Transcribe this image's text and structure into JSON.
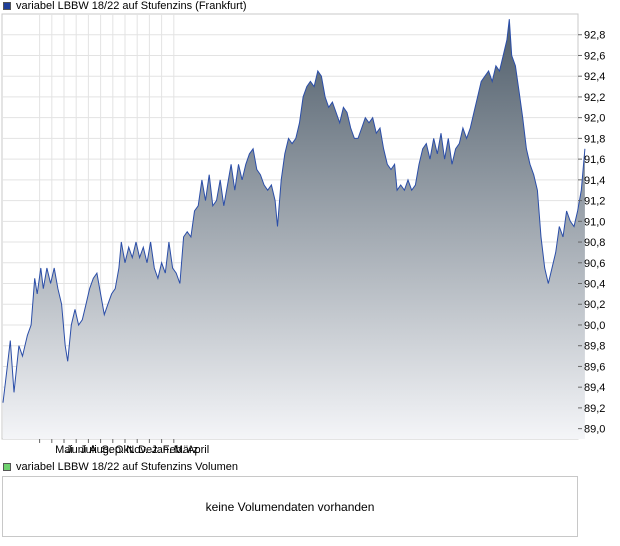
{
  "price_legend": {
    "label": "variabel LBBW 18/22 auf Stufenzins (Frankfurt)",
    "color": "#1f3f99"
  },
  "volume_legend": {
    "label": "variabel LBBW 18/22 auf Stufenzins Volumen",
    "color": "#6fd26f"
  },
  "volume_panel": {
    "message": "keine Volumendaten vorhanden"
  },
  "chart_data": {
    "type": "area",
    "series": [
      {
        "name": "variabel LBBW 18/22 auf Stufenzins (Frankfurt)"
      }
    ],
    "x_tick_labels": [
      "Mai",
      "Juni",
      "Juli",
      "Aug.",
      "Sep.",
      "Okt.",
      "Nov.",
      "Dez.",
      "Jan.",
      "Feb.",
      "März",
      "April"
    ],
    "y_tick_labels": [
      "89,0",
      "89,2",
      "89,4",
      "89,6",
      "89,8",
      "90,0",
      "90,2",
      "90,4",
      "90,6",
      "90,8",
      "91,0",
      "91,2",
      "91,4",
      "91,6",
      "91,8",
      "92,0",
      "92,2",
      "92,4",
      "92,6",
      "92,8"
    ],
    "ylim": [
      88.9,
      93.0
    ],
    "y_axis_position": "right",
    "grid": true,
    "line_color": "#2b4ea8",
    "fill_top_color": "#4f5d6a",
    "fill_bottom_color": "#f4f5f8",
    "points": [
      [
        0,
        89.25
      ],
      [
        0.3,
        89.55
      ],
      [
        0.6,
        89.85
      ],
      [
        0.9,
        89.35
      ],
      [
        1.3,
        89.8
      ],
      [
        1.6,
        89.7
      ],
      [
        2.0,
        89.9
      ],
      [
        2.3,
        90.0
      ],
      [
        2.6,
        90.45
      ],
      [
        2.8,
        90.3
      ],
      [
        3.1,
        90.55
      ],
      [
        3.3,
        90.35
      ],
      [
        3.6,
        90.55
      ],
      [
        3.9,
        90.4
      ],
      [
        4.2,
        90.55
      ],
      [
        4.5,
        90.35
      ],
      [
        4.8,
        90.2
      ],
      [
        5.1,
        89.8
      ],
      [
        5.3,
        89.65
      ],
      [
        5.6,
        90.0
      ],
      [
        5.9,
        90.15
      ],
      [
        6.2,
        90.0
      ],
      [
        6.5,
        90.05
      ],
      [
        6.8,
        90.2
      ],
      [
        7.1,
        90.35
      ],
      [
        7.4,
        90.45
      ],
      [
        7.7,
        90.5
      ],
      [
        8.0,
        90.3
      ],
      [
        8.3,
        90.1
      ],
      [
        8.6,
        90.2
      ],
      [
        8.9,
        90.3
      ],
      [
        9.2,
        90.35
      ],
      [
        9.5,
        90.55
      ],
      [
        9.7,
        90.8
      ],
      [
        10.0,
        90.6
      ],
      [
        10.3,
        90.75
      ],
      [
        10.6,
        90.65
      ],
      [
        10.9,
        90.8
      ],
      [
        11.2,
        90.65
      ],
      [
        11.5,
        90.75
      ],
      [
        11.8,
        90.6
      ],
      [
        12.1,
        90.8
      ],
      [
        12.4,
        90.55
      ],
      [
        12.7,
        90.45
      ],
      [
        13.0,
        90.6
      ],
      [
        13.3,
        90.5
      ],
      [
        13.6,
        90.8
      ],
      [
        13.9,
        90.55
      ],
      [
        14.2,
        90.5
      ],
      [
        14.5,
        90.4
      ],
      [
        14.8,
        90.85
      ],
      [
        15.1,
        90.9
      ],
      [
        15.4,
        90.85
      ],
      [
        15.7,
        91.1
      ],
      [
        16.0,
        91.15
      ],
      [
        16.3,
        91.4
      ],
      [
        16.6,
        91.2
      ],
      [
        16.9,
        91.45
      ],
      [
        17.2,
        91.15
      ],
      [
        17.5,
        91.2
      ],
      [
        17.8,
        91.4
      ],
      [
        18.1,
        91.15
      ],
      [
        18.4,
        91.35
      ],
      [
        18.7,
        91.55
      ],
      [
        19.0,
        91.3
      ],
      [
        19.3,
        91.55
      ],
      [
        19.6,
        91.4
      ],
      [
        19.9,
        91.55
      ],
      [
        20.2,
        91.65
      ],
      [
        20.5,
        91.7
      ],
      [
        20.8,
        91.5
      ],
      [
        21.1,
        91.45
      ],
      [
        21.4,
        91.35
      ],
      [
        21.7,
        91.3
      ],
      [
        22.0,
        91.35
      ],
      [
        22.3,
        91.2
      ],
      [
        22.5,
        90.95
      ],
      [
        22.8,
        91.4
      ],
      [
        23.1,
        91.65
      ],
      [
        23.4,
        91.8
      ],
      [
        23.7,
        91.75
      ],
      [
        24.0,
        91.8
      ],
      [
        24.3,
        91.95
      ],
      [
        24.6,
        92.2
      ],
      [
        24.9,
        92.3
      ],
      [
        25.2,
        92.35
      ],
      [
        25.5,
        92.3
      ],
      [
        25.8,
        92.45
      ],
      [
        26.1,
        92.4
      ],
      [
        26.4,
        92.2
      ],
      [
        26.7,
        92.1
      ],
      [
        27.0,
        92.15
      ],
      [
        27.3,
        92.05
      ],
      [
        27.6,
        91.95
      ],
      [
        27.9,
        92.1
      ],
      [
        28.2,
        92.05
      ],
      [
        28.5,
        91.9
      ],
      [
        28.8,
        91.8
      ],
      [
        29.1,
        91.8
      ],
      [
        29.4,
        91.9
      ],
      [
        29.7,
        92.0
      ],
      [
        30.0,
        91.95
      ],
      [
        30.3,
        92.0
      ],
      [
        30.6,
        91.85
      ],
      [
        30.9,
        91.9
      ],
      [
        31.2,
        91.7
      ],
      [
        31.5,
        91.55
      ],
      [
        31.8,
        91.5
      ],
      [
        32.1,
        91.55
      ],
      [
        32.3,
        91.3
      ],
      [
        32.6,
        91.35
      ],
      [
        32.9,
        91.3
      ],
      [
        33.2,
        91.4
      ],
      [
        33.5,
        91.3
      ],
      [
        33.8,
        91.35
      ],
      [
        34.1,
        91.55
      ],
      [
        34.4,
        91.7
      ],
      [
        34.7,
        91.75
      ],
      [
        35.0,
        91.6
      ],
      [
        35.3,
        91.8
      ],
      [
        35.6,
        91.65
      ],
      [
        35.9,
        91.85
      ],
      [
        36.2,
        91.6
      ],
      [
        36.5,
        91.8
      ],
      [
        36.8,
        91.55
      ],
      [
        37.1,
        91.7
      ],
      [
        37.4,
        91.75
      ],
      [
        37.7,
        91.9
      ],
      [
        38.0,
        91.8
      ],
      [
        38.3,
        91.9
      ],
      [
        38.6,
        92.05
      ],
      [
        38.9,
        92.2
      ],
      [
        39.2,
        92.35
      ],
      [
        39.5,
        92.4
      ],
      [
        39.8,
        92.45
      ],
      [
        40.1,
        92.35
      ],
      [
        40.4,
        92.5
      ],
      [
        40.7,
        92.45
      ],
      [
        41.0,
        92.6
      ],
      [
        41.3,
        92.75
      ],
      [
        41.5,
        92.95
      ],
      [
        41.7,
        92.6
      ],
      [
        42.0,
        92.5
      ],
      [
        42.3,
        92.25
      ],
      [
        42.6,
        92.0
      ],
      [
        42.9,
        91.7
      ],
      [
        43.2,
        91.55
      ],
      [
        43.5,
        91.45
      ],
      [
        43.8,
        91.3
      ],
      [
        44.1,
        90.85
      ],
      [
        44.4,
        90.55
      ],
      [
        44.7,
        90.4
      ],
      [
        45.0,
        90.55
      ],
      [
        45.3,
        90.7
      ],
      [
        45.6,
        90.95
      ],
      [
        45.9,
        90.85
      ],
      [
        46.2,
        91.1
      ],
      [
        46.5,
        91.0
      ],
      [
        46.8,
        90.95
      ],
      [
        47.1,
        91.1
      ],
      [
        47.4,
        91.3
      ],
      [
        47.7,
        91.7
      ]
    ]
  }
}
